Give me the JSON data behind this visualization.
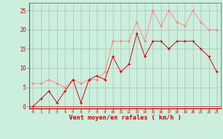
{
  "xlabel": "Vent moyen/en rafales ( km/h )",
  "background_color": "#cceedd",
  "grid_color": "#aabbbb",
  "x_values": [
    0,
    1,
    2,
    3,
    4,
    5,
    6,
    7,
    8,
    9,
    10,
    11,
    12,
    13,
    14,
    15,
    16,
    17,
    18,
    19,
    20,
    21,
    22,
    23
  ],
  "wind_mean": [
    0,
    2,
    4,
    1,
    4,
    7,
    1,
    7,
    8,
    7,
    13,
    9,
    11,
    19,
    13,
    17,
    17,
    15,
    17,
    17,
    17,
    15,
    13,
    9
  ],
  "wind_gust": [
    6,
    6,
    7,
    6,
    5,
    7,
    6,
    7,
    7,
    9,
    17,
    17,
    17,
    22,
    17,
    25,
    21,
    25,
    22,
    21,
    25,
    22,
    20,
    20
  ],
  "line_color_mean": "#cc0000",
  "line_color_gust": "#ff8888",
  "ylim": [
    -0.5,
    27
  ],
  "yticks": [
    0,
    5,
    10,
    15,
    20,
    25
  ],
  "xlim": [
    -0.5,
    23.5
  ]
}
